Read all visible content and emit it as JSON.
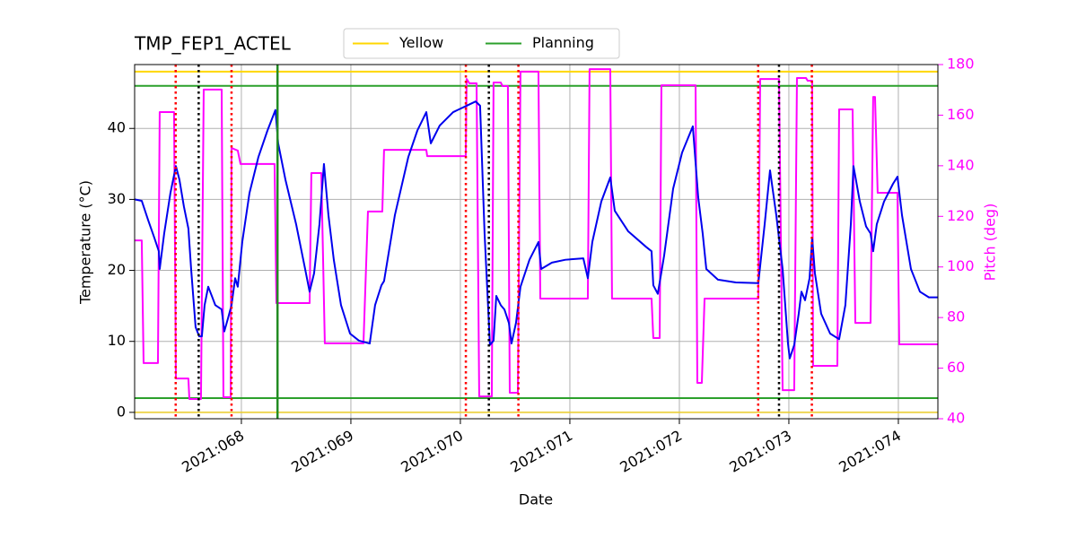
{
  "chart_data": {
    "type": "line",
    "title": "TMP_FEP1_ACTEL",
    "xlabel": "Date",
    "ylabel": "Temperature (°C)",
    "y2label": "Pitch (deg)",
    "xlim": [
      67.025,
      74.361
    ],
    "ylim": [
      -0.9,
      49
    ],
    "y2lim": [
      40,
      180
    ],
    "xticks": [
      {
        "value": 68,
        "label": "2021:068"
      },
      {
        "value": 69,
        "label": "2021:069"
      },
      {
        "value": 70,
        "label": "2021:070"
      },
      {
        "value": 71,
        "label": "2021:071"
      },
      {
        "value": 72,
        "label": "2021:072"
      },
      {
        "value": 73,
        "label": "2021:073"
      },
      {
        "value": 74,
        "label": "2021:074"
      }
    ],
    "yticks": [
      0,
      10,
      20,
      30,
      40
    ],
    "y2ticks": [
      40,
      60,
      80,
      100,
      120,
      140,
      160,
      180
    ],
    "grid": true,
    "legend": "top",
    "series": [
      {
        "color": "#0000ee",
        "x": [
          67.025,
          67.09,
          67.148,
          67.205,
          67.246,
          67.254,
          67.295,
          67.352,
          67.402,
          67.434,
          67.475,
          67.516,
          67.541,
          67.582,
          67.615,
          67.639,
          67.664,
          67.697,
          67.73,
          67.762,
          67.82,
          67.844,
          67.877,
          67.91,
          67.943,
          67.967,
          68.008,
          68.074,
          68.156,
          68.238,
          68.311,
          68.336,
          68.402,
          68.5,
          68.582,
          68.623,
          68.664,
          68.713,
          68.754,
          68.795,
          68.844,
          68.91,
          68.992,
          69.074,
          69.172,
          69.221,
          69.279,
          69.303,
          69.402,
          69.525,
          69.607,
          69.689,
          69.73,
          69.811,
          69.934,
          70.057,
          70.139,
          70.18,
          70.221,
          70.27,
          70.303,
          70.328,
          70.369,
          70.402,
          70.443,
          70.467,
          70.508,
          70.549,
          70.631,
          70.713,
          70.738,
          70.836,
          70.959,
          71.123,
          71.164,
          71.205,
          71.287,
          71.369,
          71.41,
          71.533,
          71.697,
          71.746,
          71.762,
          71.803,
          71.861,
          71.943,
          72.025,
          72.123,
          72.172,
          72.213,
          72.246,
          72.352,
          72.516,
          72.721,
          72.779,
          72.828,
          72.885,
          72.943,
          72.992,
          73.008,
          73.049,
          73.09,
          73.115,
          73.148,
          73.189,
          73.213,
          73.238,
          73.295,
          73.377,
          73.459,
          73.516,
          73.566,
          73.59,
          73.648,
          73.705,
          73.746,
          73.77,
          73.803,
          73.869,
          73.951,
          73.992,
          74.033,
          74.115,
          74.197,
          74.279,
          74.361
        ],
        "values": [
          30.0,
          29.8,
          27.1,
          24.6,
          22.7,
          20.2,
          25.2,
          30.9,
          34.7,
          32.8,
          29.0,
          25.9,
          20.2,
          12.0,
          10.7,
          10.7,
          15.1,
          17.7,
          16.4,
          15.1,
          14.5,
          11.4,
          13.2,
          15.1,
          18.9,
          17.7,
          24.0,
          30.9,
          36.0,
          39.7,
          42.6,
          37.9,
          32.8,
          26.5,
          20.2,
          17.0,
          19.6,
          26.5,
          35.0,
          27.8,
          21.5,
          15.1,
          11.1,
          10.1,
          9.7,
          15.1,
          17.9,
          18.5,
          27.8,
          36.0,
          39.7,
          42.3,
          37.9,
          40.4,
          42.3,
          43.2,
          43.8,
          43.2,
          25.2,
          9.5,
          10.1,
          16.4,
          15.1,
          14.5,
          12.6,
          9.7,
          12.6,
          17.7,
          21.5,
          24.0,
          20.2,
          21.1,
          21.5,
          21.7,
          18.9,
          24.0,
          29.7,
          33.1,
          28.4,
          25.5,
          23.3,
          22.7,
          17.9,
          16.7,
          22.1,
          31.5,
          36.6,
          40.3,
          30.3,
          25.2,
          20.2,
          18.7,
          18.3,
          18.2,
          26.5,
          34.1,
          27.8,
          20.2,
          9.7,
          7.6,
          9.5,
          13.9,
          17.0,
          15.8,
          18.9,
          24.6,
          19.6,
          13.9,
          11.1,
          10.3,
          15.1,
          26.5,
          34.7,
          29.7,
          26.2,
          25.2,
          22.7,
          26.5,
          29.7,
          32.2,
          33.2,
          27.8,
          20.2,
          17.0,
          16.2,
          16.2
        ]
      },
      {
        "color": "#ff00ff",
        "axis": "y2",
        "x": [
          67.025,
          67.09,
          67.107,
          67.238,
          67.254,
          67.385,
          67.402,
          67.516,
          67.525,
          67.631,
          67.656,
          67.82,
          67.836,
          67.902,
          67.91,
          67.967,
          67.992,
          68.303,
          68.32,
          68.623,
          68.639,
          68.73,
          68.762,
          69.115,
          69.156,
          69.287,
          69.303,
          69.689,
          69.697,
          70.049,
          70.057,
          70.082,
          70.148,
          70.172,
          70.287,
          70.303,
          70.369,
          70.385,
          70.434,
          70.451,
          70.525,
          70.549,
          70.713,
          70.73,
          71.164,
          71.18,
          71.369,
          71.385,
          71.746,
          71.762,
          71.82,
          71.836,
          72.148,
          72.164,
          72.205,
          72.23,
          72.721,
          72.738,
          72.91,
          72.943,
          73.049,
          73.074,
          73.156,
          73.172,
          73.213,
          73.221,
          73.443,
          73.459,
          73.582,
          73.607,
          73.746,
          73.77,
          73.787,
          73.811,
          73.992,
          74.008,
          74.361
        ],
        "values": [
          110.5,
          110.5,
          62.0,
          62.0,
          161.2,
          161.2,
          55.9,
          55.9,
          47.8,
          47.8,
          170.1,
          170.1,
          48.5,
          48.5,
          147.0,
          146.0,
          140.7,
          140.7,
          85.7,
          85.7,
          137.1,
          137.1,
          69.8,
          69.8,
          121.9,
          121.9,
          146.3,
          146.3,
          143.8,
          143.8,
          174.3,
          172.6,
          172.6,
          48.8,
          48.8,
          172.9,
          172.9,
          171.5,
          171.5,
          50.3,
          50.3,
          177.2,
          177.2,
          87.5,
          87.5,
          178.2,
          178.2,
          87.5,
          87.5,
          71.9,
          71.9,
          171.8,
          171.8,
          54.2,
          54.2,
          87.5,
          87.5,
          174.3,
          174.3,
          51.3,
          51.3,
          174.7,
          174.7,
          173.6,
          173.6,
          60.9,
          60.9,
          162.3,
          162.3,
          77.9,
          77.9,
          167.2,
          167.2,
          129.3,
          129.3,
          69.4,
          69.4
        ]
      }
    ],
    "limits": [
      {
        "name": "Yellow",
        "color": "#ffd700",
        "values": [
          48,
          0
        ]
      },
      {
        "name": "Planning",
        "color": "#2ca02c",
        "values": [
          46,
          2
        ]
      }
    ],
    "vlines": [
      {
        "x": 68.33,
        "color": "#228b22",
        "style": "solid"
      },
      {
        "x": 67.4,
        "color": "#ff0000",
        "style": "dotted"
      },
      {
        "x": 67.91,
        "color": "#ff0000",
        "style": "dotted"
      },
      {
        "x": 70.05,
        "color": "#ff0000",
        "style": "dotted"
      },
      {
        "x": 70.53,
        "color": "#ff0000",
        "style": "dotted"
      },
      {
        "x": 72.72,
        "color": "#ff0000",
        "style": "dotted"
      },
      {
        "x": 73.21,
        "color": "#ff0000",
        "style": "dotted"
      },
      {
        "x": 67.61,
        "color": "#000000",
        "style": "dotted"
      },
      {
        "x": 70.26,
        "color": "#000000",
        "style": "dotted"
      },
      {
        "x": 72.91,
        "color": "#000000",
        "style": "dotted"
      }
    ]
  }
}
